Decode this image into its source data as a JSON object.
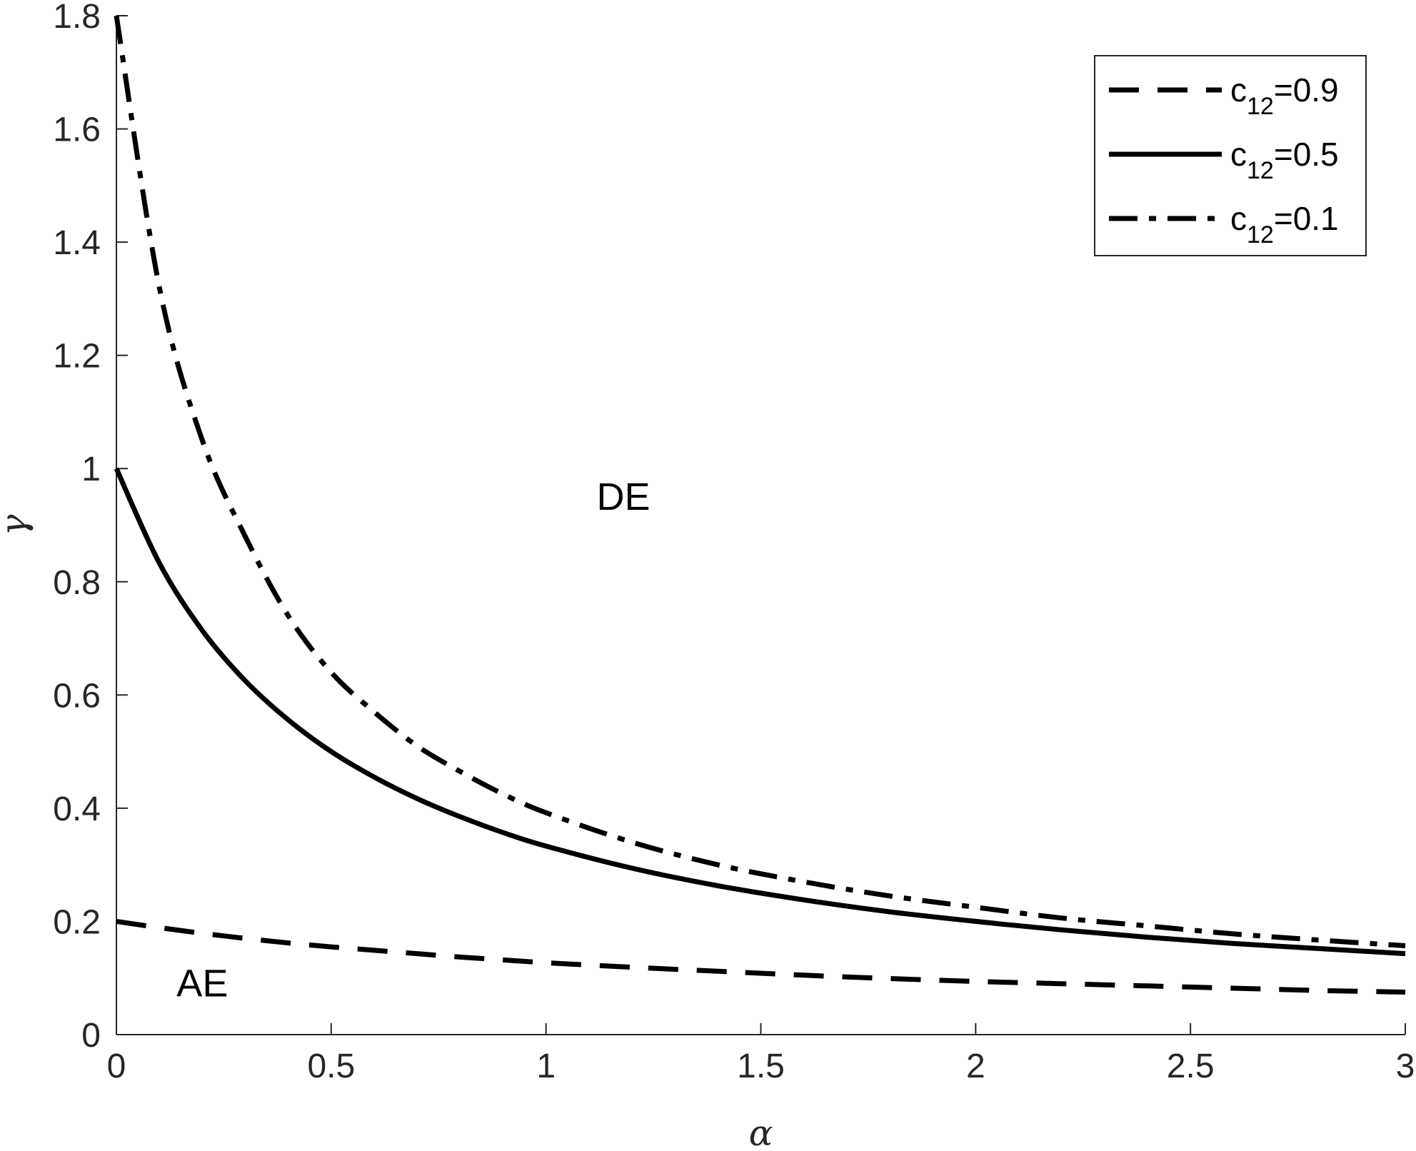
{
  "chart_data": {
    "type": "line",
    "xlabel": "α",
    "ylabel": "γ",
    "xlim": [
      0,
      3
    ],
    "ylim": [
      0,
      1.8
    ],
    "xticks": [
      "0",
      "0.5",
      "1",
      "1.5",
      "2",
      "2.5",
      "3"
    ],
    "yticks": [
      "0",
      "0.2",
      "0.4",
      "0.6",
      "0.8",
      "1",
      "1.2",
      "1.4",
      "1.6",
      "1.8"
    ],
    "grid": false,
    "legend_position": "top-right",
    "x": [
      0,
      0.1,
      0.2,
      0.3,
      0.4,
      0.5,
      0.6,
      0.7,
      0.8,
      0.9,
      1.0,
      1.2,
      1.4,
      1.6,
      1.8,
      2.0,
      2.2,
      2.4,
      2.6,
      2.8,
      3.0
    ],
    "series": [
      {
        "legend_base": "c",
        "legend_sub": "12",
        "legend_value": "=0.9",
        "style": "dashed",
        "color": "#000000",
        "values": [
          0.2,
          0.189,
          0.179,
          0.17,
          0.162,
          0.155,
          0.149,
          0.143,
          0.137,
          0.132,
          0.127,
          0.119,
          0.112,
          0.105,
          0.099,
          0.094,
          0.09,
          0.086,
          0.082,
          0.078,
          0.075
        ]
      },
      {
        "legend_base": "c",
        "legend_sub": "12",
        "legend_value": "=0.5",
        "style": "solid",
        "color": "#000000",
        "values": [
          1.0,
          0.833,
          0.714,
          0.625,
          0.556,
          0.5,
          0.455,
          0.417,
          0.385,
          0.357,
          0.333,
          0.294,
          0.263,
          0.238,
          0.217,
          0.2,
          0.185,
          0.172,
          0.161,
          0.152,
          0.143
        ]
      },
      {
        "legend_base": "c",
        "legend_sub": "12",
        "legend_value": "=0.1",
        "style": "dashdot",
        "color": "#000000",
        "values": [
          1.8,
          1.32,
          1.05,
          0.88,
          0.74,
          0.64,
          0.57,
          0.51,
          0.465,
          0.425,
          0.392,
          0.34,
          0.3,
          0.27,
          0.245,
          0.225,
          0.206,
          0.192,
          0.178,
          0.167,
          0.157
        ]
      }
    ],
    "annotations": [
      {
        "text": "DE",
        "x": 1.18,
        "y": 0.95
      },
      {
        "text": "AE",
        "x": 0.2,
        "y": 0.09
      }
    ]
  }
}
